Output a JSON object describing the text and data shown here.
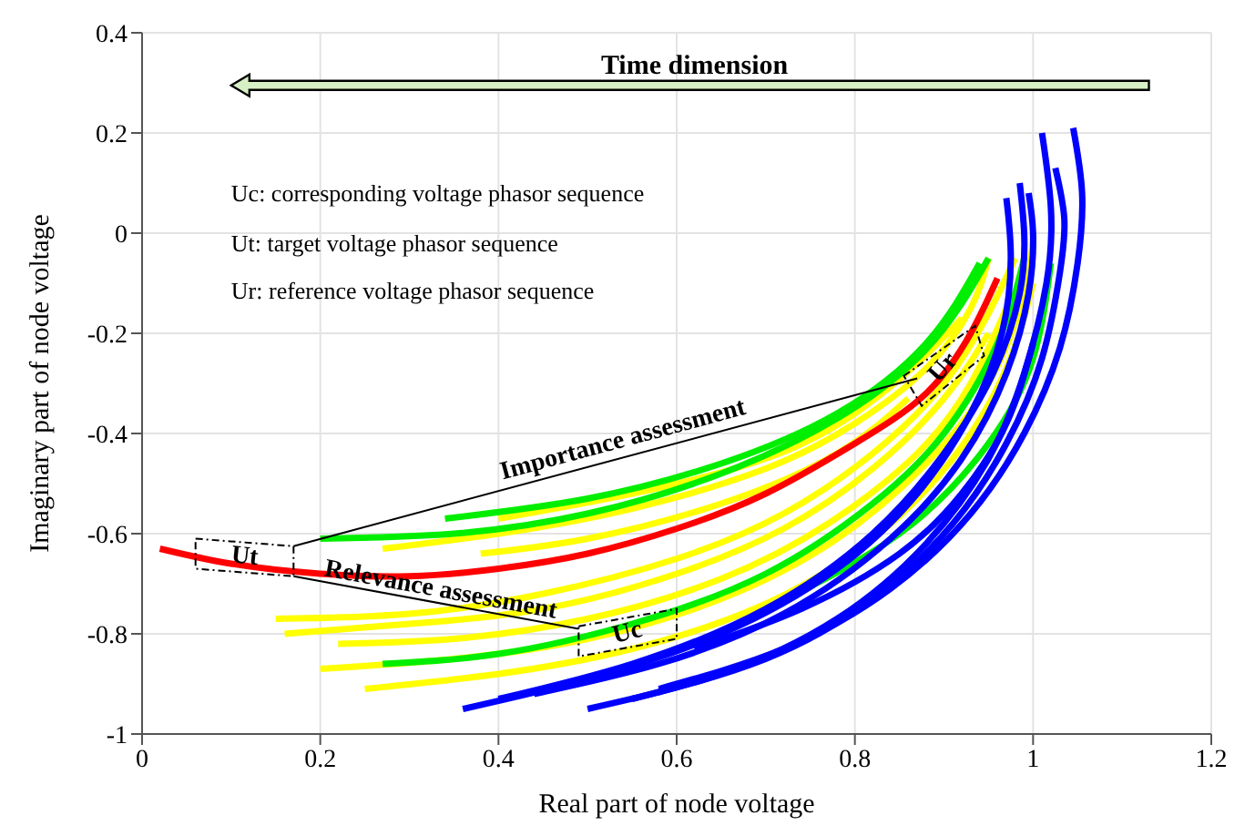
{
  "chart_data": {
    "type": "line",
    "xlabel": "Real part of node voltage",
    "ylabel": "Imaginary part of node voltage",
    "xlim": [
      0,
      1.2
    ],
    "ylim": [
      -1,
      0.4
    ],
    "xticks": [
      0,
      0.2,
      0.4,
      0.6,
      0.8,
      1,
      1.2
    ],
    "yticks": [
      -1,
      -0.8,
      -0.6,
      -0.4,
      -0.2,
      0,
      0.2,
      0.4
    ],
    "grid": true,
    "annotations": [
      "Time dimension",
      "Uc: corresponding voltage phasor sequence",
      "Ut: target voltage phasor sequence",
      "Ur: reference voltage phasor sequence",
      "Importance assessment",
      "Relevance assessment",
      "Ut",
      "Uc",
      "Ur"
    ],
    "series": [
      {
        "color": "#ffff00",
        "x": [
          0.15,
          0.3,
          0.45,
          0.6,
          0.72,
          0.82,
          0.9,
          0.95,
          0.98
        ],
        "values": [
          -0.77,
          -0.76,
          -0.72,
          -0.65,
          -0.56,
          -0.44,
          -0.3,
          -0.16,
          -0.05
        ]
      },
      {
        "color": "#ffff00",
        "x": [
          0.16,
          0.3,
          0.45,
          0.6,
          0.72,
          0.82,
          0.9,
          0.95
        ],
        "values": [
          -0.8,
          -0.78,
          -0.75,
          -0.68,
          -0.59,
          -0.47,
          -0.33,
          -0.2
        ]
      },
      {
        "color": "#ffff00",
        "x": [
          0.22,
          0.35,
          0.5,
          0.65,
          0.77,
          0.87,
          0.93,
          0.97
        ],
        "values": [
          -0.82,
          -0.81,
          -0.77,
          -0.69,
          -0.58,
          -0.44,
          -0.3,
          -0.15
        ]
      },
      {
        "color": "#ffff00",
        "x": [
          0.2,
          0.35,
          0.5,
          0.65,
          0.78,
          0.88,
          0.95,
          0.99,
          1
        ],
        "values": [
          -0.87,
          -0.85,
          -0.81,
          -0.73,
          -0.61,
          -0.46,
          -0.3,
          -0.12,
          0
        ]
      },
      {
        "color": "#ffff00",
        "x": [
          0.25,
          0.4,
          0.55,
          0.7,
          0.82,
          0.91,
          0.97,
          1
        ],
        "values": [
          -0.91,
          -0.88,
          -0.83,
          -0.74,
          -0.61,
          -0.45,
          -0.27,
          -0.1
        ]
      },
      {
        "color": "#ffff00",
        "x": [
          0.27,
          0.4,
          0.55,
          0.7,
          0.8,
          0.88,
          0.93,
          0.95
        ],
        "values": [
          -0.63,
          -0.6,
          -0.55,
          -0.47,
          -0.38,
          -0.27,
          -0.15,
          -0.05
        ]
      },
      {
        "color": "#ffff00",
        "x": [
          0.4,
          0.55,
          0.7,
          0.8,
          0.87,
          0.92
        ],
        "values": [
          -0.57,
          -0.52,
          -0.45,
          -0.36,
          -0.26,
          -0.17
        ]
      },
      {
        "color": "#ffff00",
        "x": [
          0.38,
          0.5,
          0.65,
          0.78,
          0.86
        ],
        "values": [
          -0.64,
          -0.61,
          -0.54,
          -0.44,
          -0.33
        ]
      },
      {
        "color": "#00ee00",
        "x": [
          0.2,
          0.35,
          0.5,
          0.65,
          0.78,
          0.87,
          0.92,
          0.95
        ],
        "values": [
          -0.61,
          -0.6,
          -0.56,
          -0.48,
          -0.37,
          -0.25,
          -0.14,
          -0.05
        ]
      },
      {
        "color": "#00ee00",
        "x": [
          0.34,
          0.5,
          0.65,
          0.78,
          0.88,
          0.94
        ],
        "values": [
          -0.57,
          -0.53,
          -0.46,
          -0.36,
          -0.22,
          -0.06
        ]
      },
      {
        "color": "#00ee00",
        "x": [
          0.27,
          0.4,
          0.55,
          0.7,
          0.82,
          0.9,
          0.96,
          0.99
        ],
        "values": [
          -0.86,
          -0.84,
          -0.78,
          -0.68,
          -0.54,
          -0.4,
          -0.22,
          -0.05
        ]
      },
      {
        "color": "#00ee00",
        "x": [
          0.7,
          0.85,
          0.95,
          1,
          1.02
        ],
        "values": [
          -0.75,
          -0.6,
          -0.42,
          -0.25,
          -0.06
        ]
      },
      {
        "color": "#0000ff",
        "x": [
          0.36,
          0.5,
          0.65,
          0.78,
          0.87,
          0.93,
          0.965,
          0.975,
          0.97
        ],
        "values": [
          -0.95,
          -0.89,
          -0.8,
          -0.67,
          -0.52,
          -0.36,
          -0.2,
          -0.05,
          0.07
        ]
      },
      {
        "color": "#0000ff",
        "x": [
          0.4,
          0.55,
          0.7,
          0.82,
          0.9,
          0.955,
          0.985,
          0.99,
          0.985
        ],
        "values": [
          -0.93,
          -0.86,
          -0.75,
          -0.6,
          -0.44,
          -0.28,
          -0.12,
          0,
          0.1
        ]
      },
      {
        "color": "#0000ff",
        "x": [
          0.44,
          0.58,
          0.72,
          0.84,
          0.92,
          0.97,
          0.995,
          1,
          0.995
        ],
        "values": [
          -0.92,
          -0.86,
          -0.76,
          -0.61,
          -0.45,
          -0.28,
          -0.12,
          0,
          0.08
        ]
      },
      {
        "color": "#0000ff",
        "x": [
          0.5,
          0.65,
          0.78,
          0.88,
          0.95,
          0.99,
          1.015,
          1.02,
          1.01
        ],
        "values": [
          -0.95,
          -0.88,
          -0.77,
          -0.62,
          -0.45,
          -0.28,
          -0.1,
          0.05,
          0.2
        ]
      },
      {
        "color": "#0000ff",
        "x": [
          0.55,
          0.7,
          0.82,
          0.91,
          0.97,
          1.01,
          1.03,
          1.035,
          1.025
        ],
        "values": [
          -0.93,
          -0.85,
          -0.73,
          -0.58,
          -0.42,
          -0.25,
          -0.08,
          0.03,
          0.13
        ]
      },
      {
        "color": "#0000ff",
        "x": [
          0.58,
          0.72,
          0.84,
          0.93,
          0.99,
          1.03,
          1.05,
          1.055,
          1.045
        ],
        "values": [
          -0.91,
          -0.83,
          -0.71,
          -0.56,
          -0.4,
          -0.23,
          -0.06,
          0.08,
          0.21
        ]
      },
      {
        "color": "#0000ff",
        "x": [
          0.62,
          0.74,
          0.85,
          0.92,
          0.97,
          1
        ],
        "values": [
          -0.83,
          -0.75,
          -0.64,
          -0.52,
          -0.38,
          -0.22
        ]
      },
      {
        "color": "#ff0000",
        "x": [
          0.02,
          0.1,
          0.2,
          0.3,
          0.4,
          0.5,
          0.6,
          0.7,
          0.8,
          0.88,
          0.93,
          0.96
        ],
        "values": [
          -0.63,
          -0.66,
          -0.68,
          -0.685,
          -0.67,
          -0.64,
          -0.59,
          -0.52,
          -0.42,
          -0.32,
          -0.2,
          -0.09
        ]
      }
    ]
  }
}
